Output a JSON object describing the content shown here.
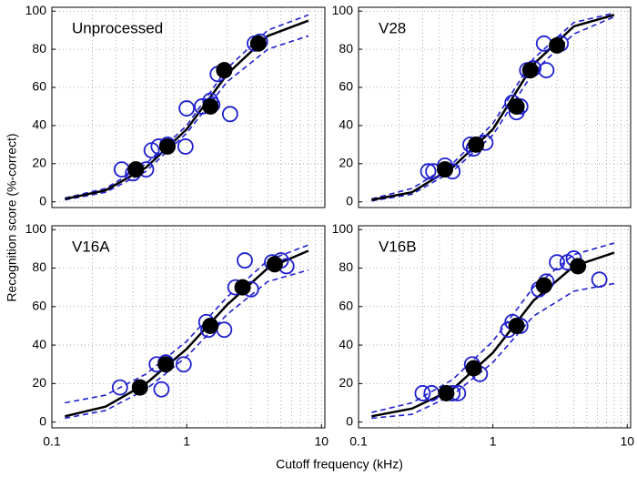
{
  "shared": {
    "xlabel": "Cutoff frequency (kHz)",
    "ylabel": "Recognition score (%-correct)"
  },
  "chart_data": [
    {
      "type": "scatter",
      "title": "Unprocessed",
      "log_x": true,
      "grid": true,
      "xlim": [
        0.1,
        10.6
      ],
      "ylim": [
        -3,
        102
      ],
      "yticks": [
        0,
        20,
        40,
        60,
        80,
        100
      ],
      "points": {
        "color": "#1f1fd0",
        "x": [
          0.33,
          0.4,
          0.5,
          0.55,
          0.62,
          0.72,
          0.98,
          1.0,
          1.3,
          1.5,
          1.55,
          1.7,
          1.9,
          2.1,
          3.2,
          3.5
        ],
        "values": [
          17,
          15,
          17,
          27,
          29,
          30,
          29,
          49,
          50,
          53,
          51,
          67,
          69,
          46,
          83,
          84
        ]
      },
      "means": {
        "color": "#000000",
        "x": [
          0.42,
          0.72,
          1.5,
          1.9,
          3.4
        ],
        "values": [
          17,
          29,
          50,
          69,
          83
        ]
      },
      "curves": [
        {
          "color": "#1f1fd0",
          "dashed": true,
          "x": [
            0.125,
            0.25,
            0.5,
            1,
            2,
            4,
            8
          ],
          "values": [
            2,
            7,
            20,
            40,
            70,
            90,
            98
          ]
        },
        {
          "color": "#1f1fd0",
          "dashed": true,
          "x": [
            0.125,
            0.25,
            0.5,
            1,
            2,
            4,
            8
          ],
          "values": [
            1,
            5,
            16,
            36,
            63,
            80,
            87
          ]
        },
        {
          "color": "#000000",
          "dashed": false,
          "x": [
            0.125,
            0.25,
            0.5,
            1,
            2,
            4,
            8
          ],
          "values": [
            1.5,
            6,
            18,
            38,
            67,
            87,
            95
          ]
        }
      ]
    },
    {
      "type": "scatter",
      "title": "V28",
      "log_x": true,
      "grid": true,
      "xlim": [
        0.1,
        10.6
      ],
      "ylim": [
        -3,
        102
      ],
      "yticks": [
        0,
        20,
        40,
        60,
        80,
        100
      ],
      "points": {
        "color": "#1f1fd0",
        "x": [
          0.33,
          0.36,
          0.44,
          0.5,
          0.68,
          0.72,
          0.88,
          1.4,
          1.5,
          1.6,
          1.8,
          2.0,
          2.4,
          2.5,
          3.2
        ],
        "values": [
          16,
          16,
          19,
          16,
          30,
          28,
          31,
          52,
          47,
          50,
          69,
          70,
          83,
          69,
          83
        ]
      },
      "means": {
        "color": "#000000",
        "x": [
          0.44,
          0.75,
          1.5,
          1.9,
          3.0
        ],
        "values": [
          17,
          30,
          50,
          69,
          82
        ]
      },
      "curves": [
        {
          "color": "#1f1fd0",
          "dashed": true,
          "x": [
            0.125,
            0.25,
            0.5,
            1,
            2,
            4,
            8
          ],
          "values": [
            1.5,
            7,
            20,
            41,
            75,
            94,
            99
          ]
        },
        {
          "color": "#1f1fd0",
          "dashed": true,
          "x": [
            0.125,
            0.25,
            0.5,
            1,
            2,
            4,
            8
          ],
          "values": [
            0.5,
            4,
            16,
            35,
            68,
            88,
            97
          ]
        },
        {
          "color": "#000000",
          "dashed": false,
          "x": [
            0.125,
            0.25,
            0.5,
            1,
            2,
            4,
            8
          ],
          "values": [
            1,
            5,
            18,
            38,
            72,
            92,
            98
          ]
        }
      ]
    },
    {
      "type": "scatter",
      "title": "V16A",
      "log_x": true,
      "grid": true,
      "xlim": [
        0.1,
        10.6
      ],
      "ylim": [
        -3,
        102
      ],
      "yticks": [
        0,
        20,
        40,
        60,
        80,
        100
      ],
      "xticks": [
        0.1,
        1,
        10
      ],
      "points": {
        "color": "#1f1fd0",
        "x": [
          0.32,
          0.45,
          0.6,
          0.65,
          0.7,
          0.95,
          1.4,
          1.45,
          1.9,
          2.3,
          2.7,
          3.0,
          4.3,
          5.0,
          5.5
        ],
        "values": [
          18,
          18,
          30,
          17,
          31,
          30,
          52,
          48,
          48,
          70,
          84,
          69,
          83,
          84,
          81
        ]
      },
      "means": {
        "color": "#000000",
        "x": [
          0.45,
          0.7,
          1.5,
          2.6,
          4.5
        ],
        "values": [
          18,
          30,
          50,
          70,
          82
        ]
      },
      "curves": [
        {
          "color": "#1f1fd0",
          "dashed": true,
          "x": [
            0.125,
            0.25,
            0.5,
            1,
            2,
            4,
            8
          ],
          "values": [
            10,
            14,
            25,
            42,
            65,
            84,
            92
          ]
        },
        {
          "color": "#1f1fd0",
          "dashed": true,
          "x": [
            0.125,
            0.25,
            0.5,
            1,
            2,
            4,
            8
          ],
          "values": [
            2,
            6,
            17,
            34,
            56,
            73,
            79
          ]
        },
        {
          "color": "#000000",
          "dashed": false,
          "x": [
            0.125,
            0.25,
            0.5,
            1,
            2,
            4,
            8
          ],
          "values": [
            3,
            8,
            20,
            38,
            61,
            80,
            89
          ]
        }
      ]
    },
    {
      "type": "scatter",
      "title": "V16B",
      "log_x": true,
      "grid": true,
      "xlim": [
        0.1,
        10.6
      ],
      "ylim": [
        -3,
        102
      ],
      "yticks": [
        0,
        20,
        40,
        60,
        80,
        100
      ],
      "xticks": [
        0.1,
        1,
        10
      ],
      "points": {
        "color": "#1f1fd0",
        "x": [
          0.3,
          0.35,
          0.5,
          0.55,
          0.7,
          0.8,
          1.3,
          1.4,
          1.6,
          2.2,
          2.5,
          3.0,
          3.6,
          4.0,
          6.2
        ],
        "values": [
          15,
          15,
          15,
          15,
          30,
          25,
          48,
          52,
          50,
          69,
          73,
          83,
          83,
          85,
          74
        ]
      },
      "means": {
        "color": "#000000",
        "x": [
          0.45,
          0.72,
          1.5,
          2.4,
          4.3
        ],
        "values": [
          15,
          28,
          50,
          71,
          81
        ]
      },
      "curves": [
        {
          "color": "#1f1fd0",
          "dashed": true,
          "x": [
            0.125,
            0.25,
            0.5,
            1,
            2,
            4,
            8
          ],
          "values": [
            5,
            10,
            22,
            42,
            70,
            87,
            93
          ]
        },
        {
          "color": "#1f1fd0",
          "dashed": true,
          "x": [
            0.125,
            0.25,
            0.5,
            1,
            2,
            4,
            8
          ],
          "values": [
            2,
            4,
            14,
            31,
            55,
            68,
            72
          ]
        },
        {
          "color": "#000000",
          "dashed": false,
          "x": [
            0.125,
            0.25,
            0.5,
            1,
            2,
            4,
            8
          ],
          "values": [
            3,
            7,
            17,
            36,
            63,
            81,
            88
          ]
        }
      ]
    }
  ]
}
